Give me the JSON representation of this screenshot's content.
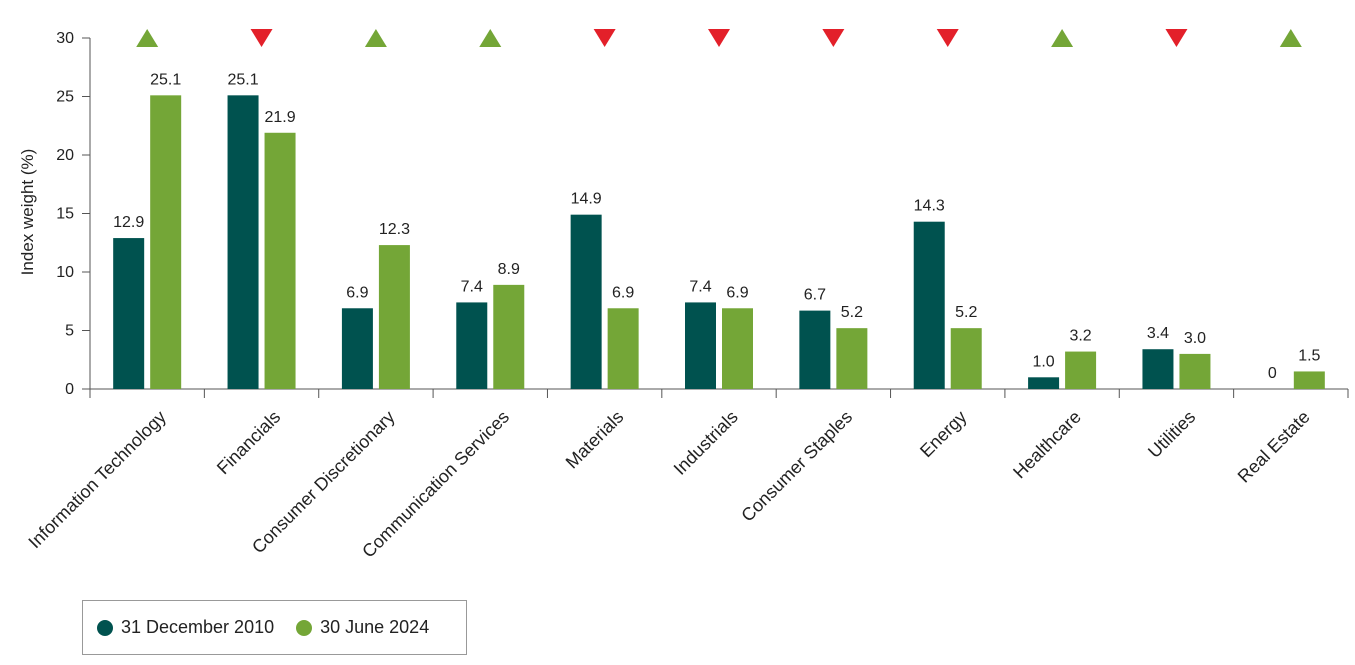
{
  "chart_data": {
    "type": "bar",
    "ylabel": "Index weight (%)",
    "ylim": [
      0,
      30
    ],
    "yticks": [
      0,
      5,
      10,
      15,
      20,
      25,
      30
    ],
    "categories": [
      "Information Technology",
      "Financials",
      "Consumer Discretionary",
      "Communication Services",
      "Materials",
      "Industrials",
      "Consumer Staples",
      "Energy",
      "Healthcare",
      "Utilities",
      "Real Estate"
    ],
    "series": [
      {
        "name": "31 December 2010",
        "color": "#00524f",
        "values": [
          12.9,
          25.1,
          6.9,
          7.4,
          14.9,
          7.4,
          6.7,
          14.3,
          1.0,
          3.4,
          0
        ],
        "labels": [
          "12.9",
          "25.1",
          "6.9",
          "7.4",
          "14.9",
          "7.4",
          "6.7",
          "14.3",
          "1.0",
          "3.4",
          "0"
        ]
      },
      {
        "name": "30 June 2024",
        "color": "#74a637",
        "values": [
          25.1,
          21.9,
          12.3,
          8.9,
          6.9,
          6.9,
          5.2,
          5.2,
          3.2,
          3.0,
          1.5
        ],
        "labels": [
          "25.1",
          "21.9",
          "12.3",
          "8.9",
          "6.9",
          "6.9",
          "5.2",
          "5.2",
          "3.2",
          "3.0",
          "1.5"
        ]
      }
    ],
    "change_direction": [
      "up",
      "down",
      "up",
      "up",
      "down",
      "down",
      "down",
      "down",
      "up",
      "down",
      "up"
    ],
    "up_color": "#74a637",
    "down_color": "#e3202a",
    "grid": false,
    "legend_position": "bottom-left"
  }
}
